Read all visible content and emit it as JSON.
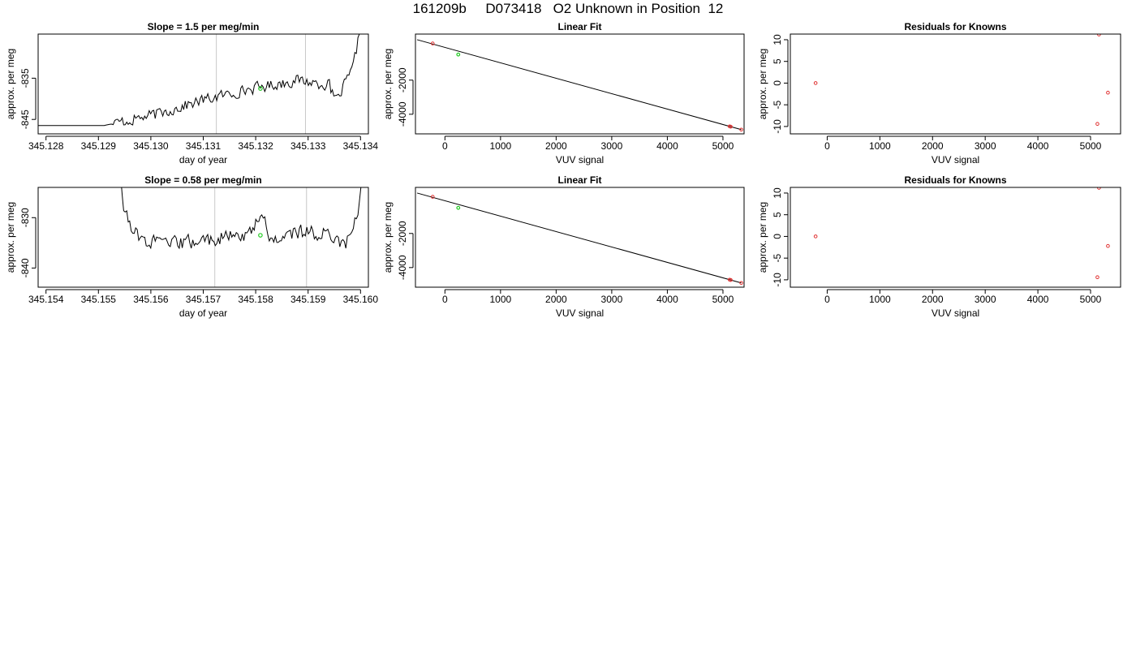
{
  "page": {
    "title": "161209b     D073418   O2 Unknown in Position  12"
  },
  "chart_data": [
    {
      "id": "trace-1",
      "type": "line",
      "title": "Slope =  1.5  per meg/min",
      "xlabel": "day of year",
      "ylabel": "approx. per meg",
      "xlim": [
        345.12785,
        345.13415
      ],
      "ylim": [
        -848.5,
        -824.3
      ],
      "xticks": [
        345.128,
        345.129,
        345.13,
        345.131,
        345.132,
        345.133,
        345.134
      ],
      "xtick_labels": [
        "345.128",
        "345.129",
        "345.130",
        "345.131",
        "345.132",
        "345.133",
        "345.134"
      ],
      "yticks": [
        -845,
        -835
      ],
      "ytick_labels": [
        "-845",
        "-835"
      ],
      "vlines": [
        345.13125,
        345.13295
      ],
      "highlight_point": {
        "x": 345.13209,
        "y": -837.5,
        "color": "#22cc22"
      },
      "series": [
        {
          "x": [
            345.1291,
            345.1301,
            345.131,
            345.1319,
            345.1328,
            345.1334,
            345.13345,
            345.13355,
            345.1337,
            345.13385,
            345.1341
          ],
          "y": [
            -846.5,
            -843.8,
            -840.3,
            -837.6,
            -835.5,
            -836.6,
            -838.8,
            -840.4,
            -836.5,
            -833.0,
            -816.0
          ]
        }
      ]
    },
    {
      "id": "fit-1",
      "type": "scatter",
      "title": "Linear Fit",
      "xlabel": "VUV signal",
      "ylabel": "approx. per meg",
      "xlim": [
        -530,
        5380
      ],
      "ylim": [
        -5150,
        700
      ],
      "xticks": [
        0,
        1000,
        2000,
        3000,
        4000,
        5000
      ],
      "xtick_labels": [
        "0",
        "1000",
        "2000",
        "3000",
        "4000",
        "5000"
      ],
      "yticks": [
        -4000,
        -2000
      ],
      "ytick_labels": [
        "-4000",
        "-2000"
      ],
      "fit_line": {
        "x": [
          -500,
          5330
        ],
        "y": [
          370,
          -4900
        ]
      },
      "known_points": {
        "x": [
          -220,
          5120,
          5140,
          5330
        ],
        "y": [
          150,
          -4710,
          -4730,
          -4900
        ]
      },
      "unknown_points": {
        "x": [
          240
        ],
        "y": [
          -500
        ]
      }
    },
    {
      "id": "resid-1",
      "type": "scatter",
      "title": "Residuals for Knowns",
      "xlabel": "VUV signal",
      "ylabel": "approx. per meg",
      "xlim": [
        -700,
        5570
      ],
      "ylim": [
        -11.7,
        11.3
      ],
      "xticks": [
        0,
        1000,
        2000,
        3000,
        4000,
        5000
      ],
      "xtick_labels": [
        "0",
        "1000",
        "2000",
        "3000",
        "4000",
        "5000"
      ],
      "yticks": [
        -10,
        -5,
        0,
        5,
        10
      ],
      "ytick_labels": [
        "-10",
        "-5",
        "0",
        "5",
        "10"
      ],
      "points": {
        "x": [
          -220,
          5130,
          5160,
          5330
        ],
        "y": [
          0.0,
          -9.4,
          11.2,
          -2.2
        ]
      }
    },
    {
      "id": "trace-2",
      "type": "line",
      "title": "Slope =  0.58  per meg/min",
      "xlabel": "day of year",
      "ylabel": "approx. per meg",
      "xlim": [
        345.15385,
        345.16015
      ],
      "ylim": [
        -843.8,
        -824.0
      ],
      "xticks": [
        345.154,
        345.155,
        345.156,
        345.157,
        345.158,
        345.159,
        345.16
      ],
      "xtick_labels": [
        "345.154",
        "345.155",
        "345.156",
        "345.157",
        "345.158",
        "345.159",
        "345.160"
      ],
      "yticks": [
        -840,
        -830
      ],
      "ytick_labels": [
        "-840",
        "-830"
      ],
      "vlines": [
        345.15722,
        345.15897
      ],
      "highlight_point": {
        "x": 345.15809,
        "y": -833.5,
        "color": "#22cc22"
      },
      "series": [
        {
          "x": [
            345.1553,
            345.1555,
            345.1558,
            345.1564,
            345.1572,
            345.1579,
            345.1581,
            345.1583,
            345.1588,
            345.1595,
            345.1597,
            345.15985,
            345.15995,
            345.16005
          ],
          "y": [
            -810.0,
            -829.2,
            -834.5,
            -835.2,
            -834.3,
            -833.2,
            -828.8,
            -834.6,
            -832.8,
            -833.4,
            -835.8,
            -832.0,
            -829.5,
            -820.0
          ]
        }
      ]
    },
    {
      "id": "fit-2",
      "type": "scatter",
      "title": "Linear Fit",
      "xlabel": "VUV signal",
      "ylabel": "approx. per meg",
      "xlim": [
        -530,
        5380
      ],
      "ylim": [
        -5150,
        700
      ],
      "xticks": [
        0,
        1000,
        2000,
        3000,
        4000,
        5000
      ],
      "xtick_labels": [
        "0",
        "1000",
        "2000",
        "3000",
        "4000",
        "5000"
      ],
      "yticks": [
        -4000,
        -2000
      ],
      "ytick_labels": [
        "-4000",
        "-2000"
      ],
      "fit_line": {
        "x": [
          -500,
          5330
        ],
        "y": [
          370,
          -4900
        ]
      },
      "known_points": {
        "x": [
          -220,
          5120,
          5140,
          5330
        ],
        "y": [
          150,
          -4710,
          -4730,
          -4900
        ]
      },
      "unknown_points": {
        "x": [
          240
        ],
        "y": [
          -500
        ]
      }
    },
    {
      "id": "resid-2",
      "type": "scatter",
      "title": "Residuals for Knowns",
      "xlabel": "VUV signal",
      "ylabel": "approx. per meg",
      "xlim": [
        -700,
        5570
      ],
      "ylim": [
        -11.7,
        11.3
      ],
      "xticks": [
        0,
        1000,
        2000,
        3000,
        4000,
        5000
      ],
      "xtick_labels": [
        "0",
        "1000",
        "2000",
        "3000",
        "4000",
        "5000"
      ],
      "yticks": [
        -10,
        -5,
        0,
        5,
        10
      ],
      "ytick_labels": [
        "-10",
        "-5",
        "0",
        "5",
        "10"
      ],
      "points": {
        "x": [
          -220,
          5130,
          5160,
          5330
        ],
        "y": [
          0.0,
          -9.4,
          11.2,
          -2.2
        ]
      }
    }
  ]
}
